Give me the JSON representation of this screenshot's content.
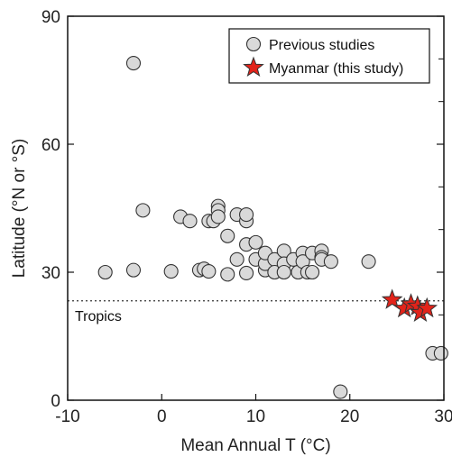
{
  "chart_data": {
    "type": "scatter",
    "xlabel": "Mean Annual T (°C)",
    "ylabel": "Latitude (°N or °S)",
    "xlim": [
      -10,
      30
    ],
    "ylim": [
      0,
      90
    ],
    "xticks": [
      -10,
      0,
      10,
      20,
      30
    ],
    "yticks": [
      0,
      30,
      60,
      90
    ],
    "yminor": [
      10,
      20,
      40,
      50,
      70,
      80
    ],
    "legend_position": "top-right",
    "annotations": [
      {
        "text": "Tropics",
        "y": 23.5,
        "style": "dotted-hline"
      }
    ],
    "series": [
      {
        "name": "Previous studies",
        "marker": "circle",
        "color": "#d9d9d9",
        "points": [
          [
            -3,
            79
          ],
          [
            -2,
            44.5
          ],
          [
            -6,
            30
          ],
          [
            -3,
            30.5
          ],
          [
            1,
            30.2
          ],
          [
            2,
            43
          ],
          [
            3,
            42
          ],
          [
            4,
            30.5
          ],
          [
            4.5,
            30.8
          ],
          [
            5,
            42
          ],
          [
            5.5,
            42
          ],
          [
            5,
            30.2
          ],
          [
            6,
            45.5
          ],
          [
            6,
            44.5
          ],
          [
            6,
            43
          ],
          [
            7,
            38.5
          ],
          [
            7,
            29.5
          ],
          [
            8,
            43.5
          ],
          [
            8,
            33
          ],
          [
            9,
            42
          ],
          [
            9,
            43.5
          ],
          [
            9,
            36.5
          ],
          [
            9,
            29.8
          ],
          [
            10,
            37
          ],
          [
            10,
            33
          ],
          [
            11,
            30.5
          ],
          [
            11,
            32
          ],
          [
            11,
            34.5
          ],
          [
            12,
            33
          ],
          [
            12,
            30
          ],
          [
            13,
            35
          ],
          [
            13,
            32
          ],
          [
            13,
            30
          ],
          [
            14,
            33
          ],
          [
            14.5,
            30
          ],
          [
            15,
            34.5
          ],
          [
            15,
            32.5
          ],
          [
            15.5,
            30
          ],
          [
            16,
            34.5
          ],
          [
            16,
            30
          ],
          [
            17,
            35
          ],
          [
            17,
            33.5
          ],
          [
            17,
            33
          ],
          [
            18,
            32.5
          ],
          [
            22,
            32.5
          ],
          [
            19,
            2
          ],
          [
            28.8,
            11
          ],
          [
            29.7,
            11
          ]
        ]
      },
      {
        "name": "Myanmar (this study)",
        "marker": "star",
        "color": "#e2231a",
        "points": [
          [
            24.5,
            23.5
          ],
          [
            25.8,
            21.5
          ],
          [
            26.5,
            22.5
          ],
          [
            27.2,
            22
          ],
          [
            27.5,
            20.5
          ],
          [
            28.2,
            21.5
          ]
        ]
      }
    ]
  }
}
